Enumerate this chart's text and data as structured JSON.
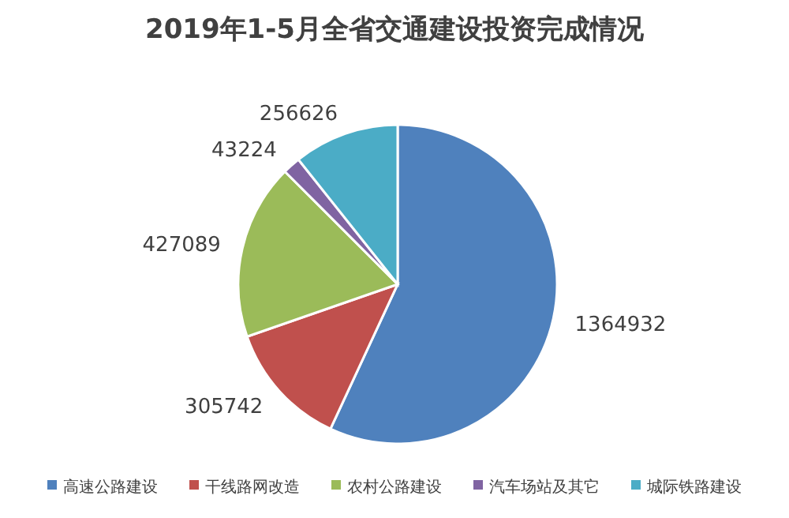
{
  "chart_data": {
    "type": "pie",
    "title": "2019年1-5月全省交通建设投资完成情况",
    "categories": [
      "高速公路建设",
      "干线路网改造",
      "农村公路建设",
      "汽车场站及其它",
      "城际铁路建设"
    ],
    "values": [
      1364932,
      305742,
      427089,
      43224,
      256626
    ],
    "colors": [
      "#4f81bd",
      "#c0504d",
      "#9bbb59",
      "#8064a2",
      "#4bacc6"
    ],
    "data_labels": true,
    "legend": "bottom"
  }
}
